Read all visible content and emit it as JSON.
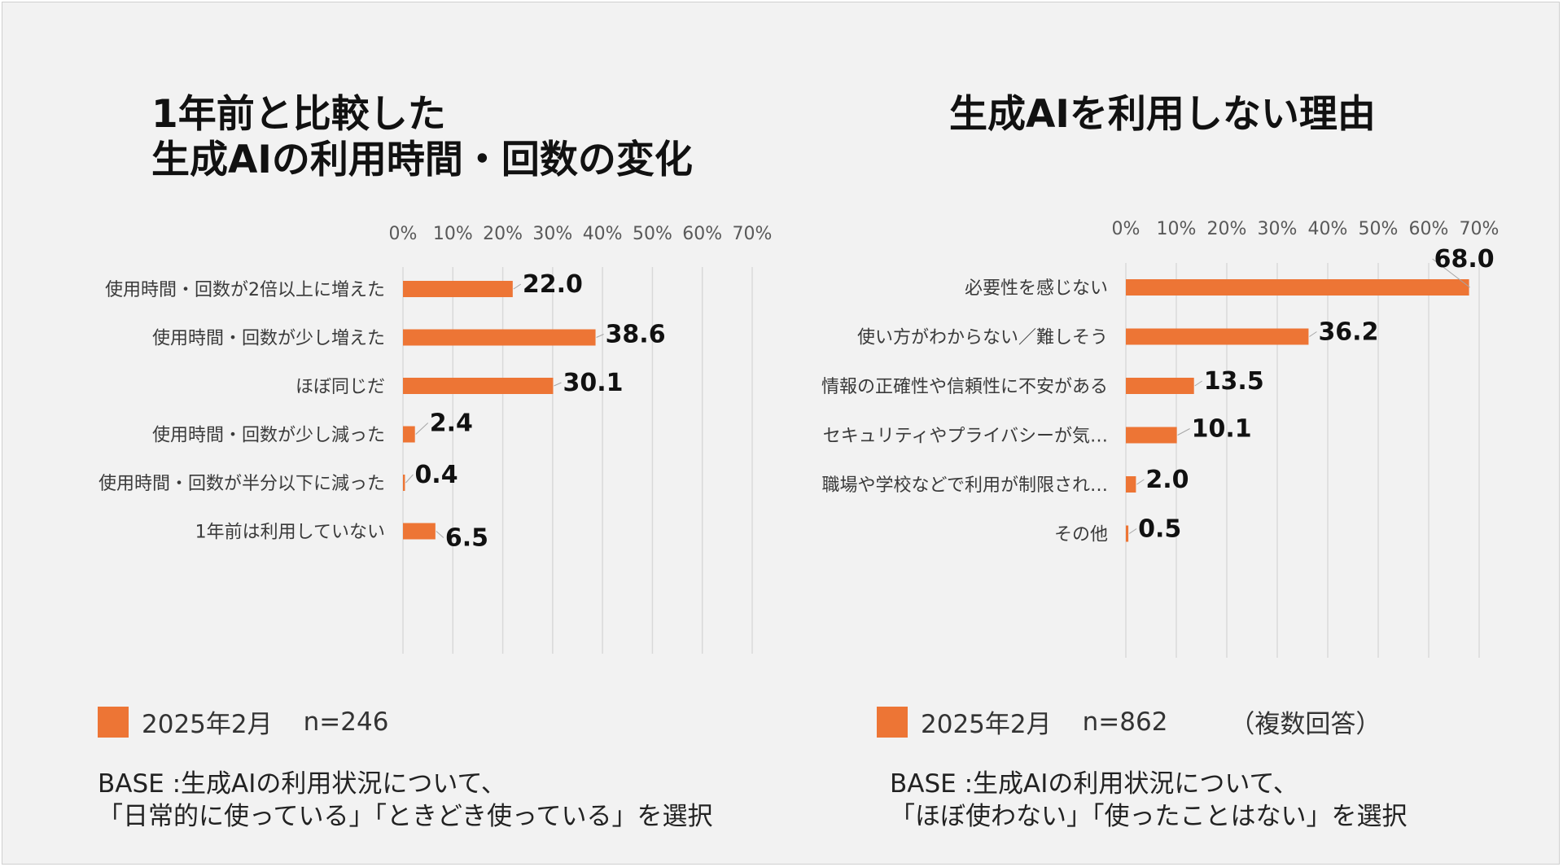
{
  "colors": {
    "bar": "#ED7535",
    "grid": "#d9d9d9",
    "background": "#f2f2f2"
  },
  "left": {
    "title_line1": "1年前と比較した",
    "title_line2": "生成AIの利用時間・回数の変化",
    "legend_label": "2025年2月",
    "legend_n": "n=246",
    "note_line1": "BASE :生成AIの利用状況について、",
    "note_line2": "「日常的に使っている」「ときどき使っている」を選択"
  },
  "right": {
    "title": "生成AIを利用しない理由",
    "legend_label": "2025年2月",
    "legend_n": "n=862",
    "legend_extra": "（複数回答）",
    "note_line1": "BASE :生成AIの利用状況について、",
    "note_line2": "「ほぼ使わない」「使ったことはない」を選択"
  },
  "chart_data": [
    {
      "type": "bar",
      "orientation": "horizontal",
      "title": "1年前と比較した 生成AIの利用時間・回数の変化",
      "categories": [
        "使用時間・回数が2倍以上に増えた",
        "使用時間・回数が少し増えた",
        "ほぼ同じだ",
        "使用時間・回数が少し減った",
        "使用時間・回数が半分以下に減った",
        "1年前は利用していない"
      ],
      "series": [
        {
          "name": "2025年2月",
          "values": [
            22.0,
            38.6,
            30.1,
            2.4,
            0.4,
            6.5
          ]
        }
      ],
      "data_labels": [
        "22.0",
        "38.6",
        "30.1",
        "2.4",
        "0.4",
        "6.5"
      ],
      "xlim": [
        0,
        70
      ],
      "x_ticks": [
        "0%",
        "10%",
        "20%",
        "30%",
        "40%",
        "50%",
        "60%",
        "70%"
      ],
      "x_axis_position": "top",
      "grid": true,
      "legend": "bottom-left"
    },
    {
      "type": "bar",
      "orientation": "horizontal",
      "title": "生成AIを利用しない理由",
      "categories": [
        "必要性を感じない",
        "使い方がわからない／難しそう",
        "情報の正確性や信頼性に不安がある",
        "セキュリティやプライバシーが気…",
        "職場や学校などで利用が制限され…",
        "その他"
      ],
      "series": [
        {
          "name": "2025年2月",
          "values": [
            68.0,
            36.2,
            13.5,
            10.1,
            2.0,
            0.5
          ]
        }
      ],
      "data_labels": [
        "68.0",
        "36.2",
        "13.5",
        "10.1",
        "2.0",
        "0.5"
      ],
      "xlim": [
        0,
        70
      ],
      "x_ticks": [
        "0%",
        "10%",
        "20%",
        "30%",
        "40%",
        "50%",
        "60%",
        "70%"
      ],
      "x_axis_position": "top",
      "grid": true,
      "legend": "bottom-left"
    }
  ]
}
